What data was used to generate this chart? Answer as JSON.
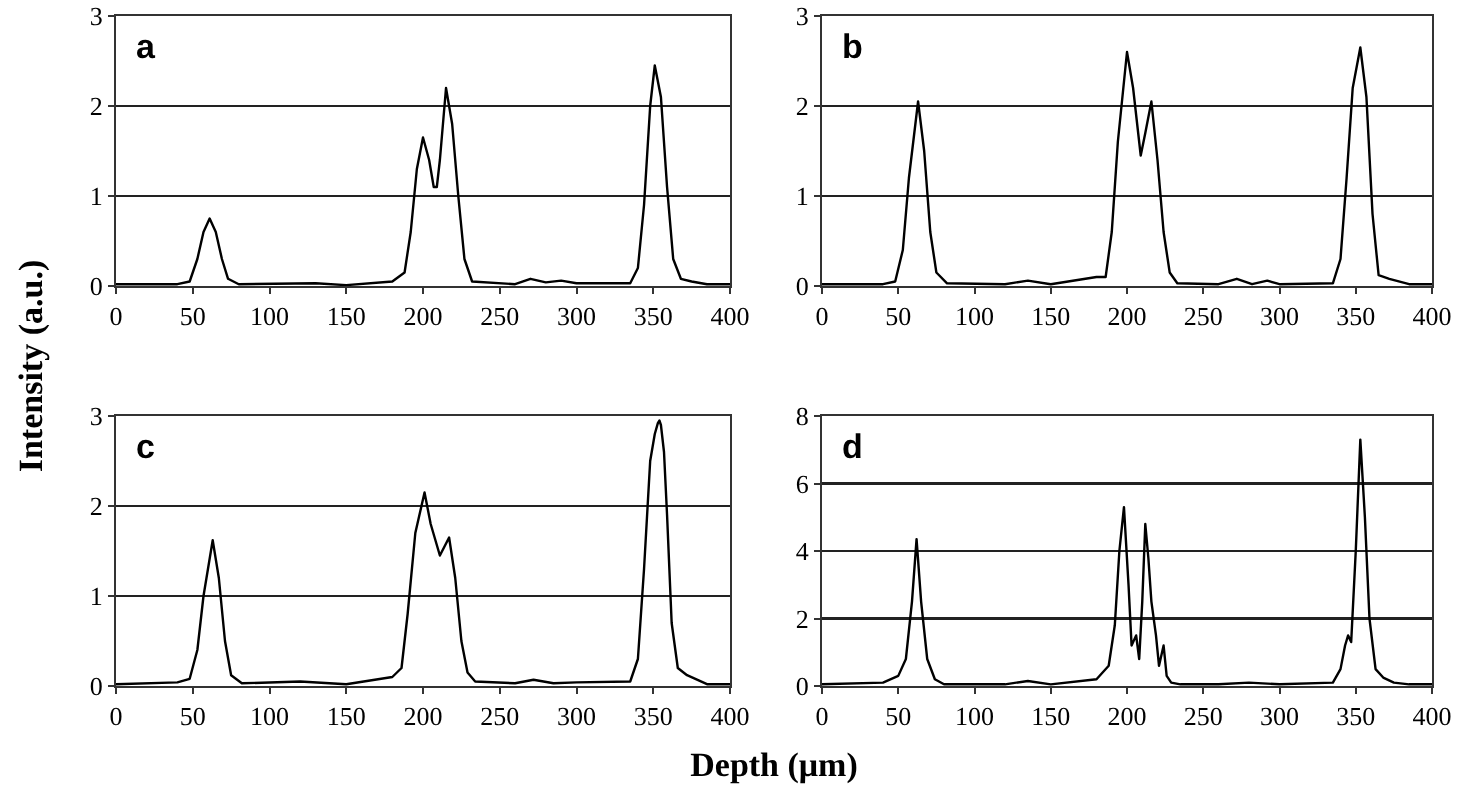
{
  "chart_data": [
    {
      "type": "line",
      "title": "a",
      "ylabel": "Intensity (a.u.)",
      "xlim": [
        0,
        400
      ],
      "xticks": [
        0,
        50,
        100,
        150,
        200,
        250,
        300,
        350,
        400
      ],
      "ylim": [
        0,
        3
      ],
      "yticks": [
        0,
        1,
        2,
        3
      ],
      "grid": "y",
      "series": [
        {
          "color": "#000000",
          "x": [
            0,
            40,
            48,
            53,
            57,
            61,
            65,
            69,
            73,
            80,
            130,
            150,
            180,
            188,
            192,
            196,
            200,
            204,
            207,
            209,
            211,
            215,
            219,
            223,
            227,
            232,
            260,
            270,
            280,
            290,
            300,
            335,
            340,
            344,
            348,
            351,
            355,
            359,
            363,
            368,
            375,
            385,
            400
          ],
          "values": [
            0.02,
            0.02,
            0.05,
            0.3,
            0.6,
            0.75,
            0.6,
            0.3,
            0.08,
            0.02,
            0.03,
            0.01,
            0.05,
            0.15,
            0.6,
            1.3,
            1.65,
            1.4,
            1.1,
            1.1,
            1.4,
            2.2,
            1.8,
            1.0,
            0.3,
            0.05,
            0.02,
            0.08,
            0.04,
            0.06,
            0.03,
            0.03,
            0.2,
            0.9,
            2.0,
            2.45,
            2.1,
            1.1,
            0.3,
            0.08,
            0.05,
            0.02,
            0.02
          ]
        }
      ]
    },
    {
      "type": "line",
      "title": "b",
      "xlim": [
        0,
        400
      ],
      "xticks": [
        0,
        50,
        100,
        150,
        200,
        250,
        300,
        350,
        400
      ],
      "ylim": [
        0,
        3
      ],
      "yticks": [
        0,
        1,
        2,
        3
      ],
      "grid": "y",
      "series": [
        {
          "color": "#000000",
          "x": [
            0,
            40,
            48,
            53,
            57,
            63,
            67,
            71,
            75,
            82,
            120,
            135,
            150,
            180,
            186,
            190,
            194,
            200,
            204,
            209,
            212,
            216,
            220,
            224,
            228,
            233,
            260,
            272,
            282,
            292,
            300,
            335,
            340,
            344,
            348,
            353,
            357,
            361,
            365,
            372,
            385,
            400
          ],
          "values": [
            0.02,
            0.02,
            0.05,
            0.4,
            1.2,
            2.05,
            1.5,
            0.6,
            0.15,
            0.03,
            0.02,
            0.06,
            0.02,
            0.1,
            0.1,
            0.6,
            1.6,
            2.6,
            2.2,
            1.45,
            1.7,
            2.05,
            1.4,
            0.6,
            0.15,
            0.03,
            0.02,
            0.08,
            0.02,
            0.06,
            0.02,
            0.03,
            0.3,
            1.2,
            2.2,
            2.65,
            2.1,
            0.8,
            0.12,
            0.08,
            0.02,
            0.02
          ]
        }
      ]
    },
    {
      "type": "line",
      "xlabel": "Depth (μm)",
      "title": "c",
      "xlim": [
        0,
        400
      ],
      "xticks": [
        0,
        50,
        100,
        150,
        200,
        250,
        300,
        350,
        400
      ],
      "ylim": [
        0,
        3
      ],
      "yticks": [
        0,
        1,
        2,
        3
      ],
      "grid": "y",
      "series": [
        {
          "color": "#000000",
          "x": [
            0,
            40,
            48,
            53,
            57,
            63,
            67,
            71,
            75,
            82,
            120,
            150,
            180,
            186,
            190,
            195,
            201,
            205,
            211,
            214,
            217,
            221,
            225,
            229,
            234,
            260,
            272,
            285,
            300,
            335,
            340,
            344,
            348,
            351,
            353,
            354,
            355,
            357,
            359,
            362,
            366,
            372,
            385,
            400
          ],
          "values": [
            0.02,
            0.04,
            0.08,
            0.4,
            1.0,
            1.62,
            1.2,
            0.5,
            0.12,
            0.03,
            0.05,
            0.02,
            0.1,
            0.2,
            0.8,
            1.7,
            2.15,
            1.8,
            1.45,
            1.55,
            1.65,
            1.2,
            0.5,
            0.15,
            0.05,
            0.03,
            0.07,
            0.03,
            0.04,
            0.05,
            0.3,
            1.3,
            2.5,
            2.8,
            2.92,
            2.95,
            2.9,
            2.6,
            1.9,
            0.7,
            0.2,
            0.12,
            0.02,
            0.02
          ]
        }
      ]
    },
    {
      "type": "line",
      "title": "d",
      "xlim": [
        0,
        400
      ],
      "xticks": [
        0,
        50,
        100,
        150,
        200,
        250,
        300,
        350,
        400
      ],
      "ylim": [
        0,
        8
      ],
      "yticks": [
        0,
        2,
        4,
        6,
        8
      ],
      "grid": "y",
      "series": [
        {
          "color": "#000000",
          "x": [
            0,
            40,
            50,
            55,
            59,
            62,
            65,
            69,
            74,
            80,
            120,
            135,
            150,
            180,
            188,
            192,
            195,
            198,
            201,
            203,
            206,
            208,
            210,
            212,
            214,
            216,
            219,
            221,
            224,
            226,
            229,
            235,
            260,
            280,
            300,
            335,
            340,
            343,
            345,
            347,
            350,
            353,
            356,
            359,
            363,
            368,
            375,
            385,
            400
          ],
          "values": [
            0.05,
            0.1,
            0.3,
            0.8,
            2.5,
            4.35,
            2.5,
            0.8,
            0.2,
            0.05,
            0.05,
            0.15,
            0.05,
            0.2,
            0.6,
            1.8,
            4.0,
            5.3,
            3.0,
            1.2,
            1.5,
            0.8,
            2.5,
            4.8,
            3.8,
            2.5,
            1.5,
            0.6,
            1.2,
            0.3,
            0.1,
            0.05,
            0.05,
            0.1,
            0.05,
            0.1,
            0.5,
            1.2,
            1.5,
            1.3,
            4.0,
            7.3,
            5.0,
            2.0,
            0.5,
            0.25,
            0.1,
            0.05,
            0.05
          ]
        }
      ]
    }
  ]
}
